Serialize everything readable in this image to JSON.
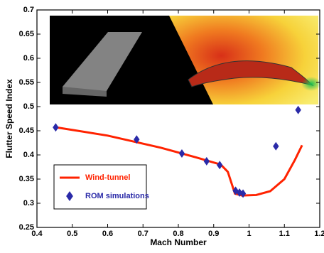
{
  "chart_data": {
    "type": "line",
    "x_label": "Mach Number",
    "y_label": "Flutter Speed Index",
    "xlim": [
      0.4,
      1.2
    ],
    "xticks": [
      0.4,
      0.5,
      0.6,
      0.7,
      0.8,
      0.9,
      1,
      1.1,
      1.2
    ],
    "ylim": [
      0.25,
      0.7
    ],
    "yticks": [
      0.25,
      0.3,
      0.35,
      0.4,
      0.45,
      0.5,
      0.55,
      0.6,
      0.65,
      0.7
    ],
    "legend": "lower left",
    "series": [
      {
        "name": "Wind-tunnel",
        "type": "line",
        "color": "#ff2200",
        "x": [
          0.455,
          0.6,
          0.75,
          0.85,
          0.92,
          0.94,
          0.96,
          0.98,
          1.02,
          1.06,
          1.1,
          1.13,
          1.15
        ],
        "values": [
          0.457,
          0.44,
          0.415,
          0.395,
          0.38,
          0.365,
          0.32,
          0.316,
          0.317,
          0.325,
          0.35,
          0.39,
          0.42
        ]
      },
      {
        "name": "ROM simulations",
        "type": "scatter",
        "color": "#2a2aa8",
        "x": [
          0.453,
          0.682,
          0.81,
          0.88,
          0.917,
          0.962,
          0.973,
          0.983,
          1.076,
          1.139
        ],
        "values": [
          0.457,
          0.432,
          0.403,
          0.387,
          0.379,
          0.326,
          0.322,
          0.32,
          0.418,
          0.493
        ]
      }
    ]
  }
}
